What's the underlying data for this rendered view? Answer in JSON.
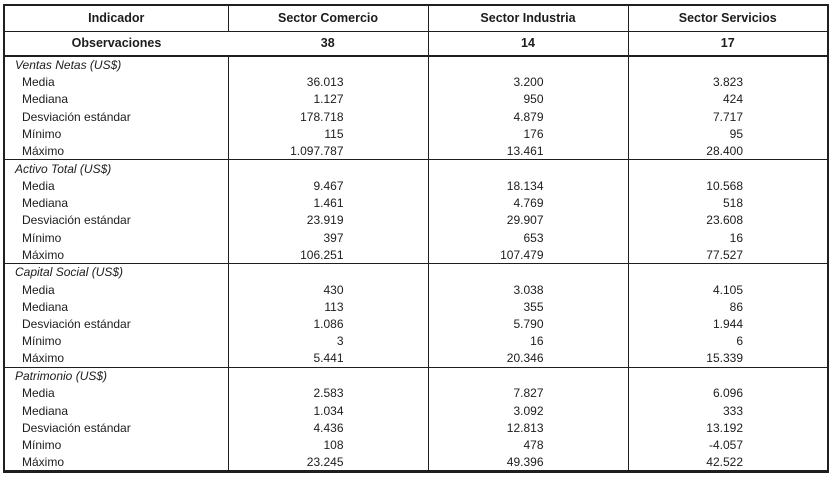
{
  "table": {
    "columns": [
      "Indicador",
      "Sector Comercio",
      "Sector Industria",
      "Sector Servicios"
    ],
    "observations": {
      "label": "Observaciones",
      "values": [
        "38",
        "14",
        "17"
      ]
    },
    "stat_labels": [
      "Media",
      "Mediana",
      "Desviación estándar",
      "Mínimo",
      "Máximo"
    ],
    "sections": [
      {
        "title": "Ventas Netas (US$)",
        "rows": [
          {
            "label": "Media",
            "values": [
              "36.013",
              "3.200",
              "3.823"
            ]
          },
          {
            "label": "Mediana",
            "values": [
              "1.127",
              "950",
              "424"
            ]
          },
          {
            "label": "Desviación estándar",
            "values": [
              "178.718",
              "4.879",
              "7.717"
            ]
          },
          {
            "label": "Mínimo",
            "values": [
              "115",
              "176",
              "95"
            ]
          },
          {
            "label": "Máximo",
            "values": [
              "1.097.787",
              "13.461",
              "28.400"
            ]
          }
        ]
      },
      {
        "title": "Activo Total (US$)",
        "rows": [
          {
            "label": "Media",
            "values": [
              "9.467",
              "18.134",
              "10.568"
            ]
          },
          {
            "label": "Mediana",
            "values": [
              "1.461",
              "4.769",
              "518"
            ]
          },
          {
            "label": "Desviación estándar",
            "values": [
              "23.919",
              "29.907",
              "23.608"
            ]
          },
          {
            "label": "Mínimo",
            "values": [
              "397",
              "653",
              "16"
            ]
          },
          {
            "label": "Máximo",
            "values": [
              "106.251",
              "107.479",
              "77.527"
            ]
          }
        ]
      },
      {
        "title": "Capital Social (US$)",
        "rows": [
          {
            "label": "Media",
            "values": [
              "430",
              "3.038",
              "4.105"
            ]
          },
          {
            "label": "Mediana",
            "values": [
              "113",
              "355",
              "86"
            ]
          },
          {
            "label": "Desviación estándar",
            "values": [
              "1.086",
              "5.790",
              "1.944"
            ]
          },
          {
            "label": "Mínimo",
            "values": [
              "3",
              "16",
              "6"
            ]
          },
          {
            "label": "Máximo",
            "values": [
              "5.441",
              "20.346",
              "15.339"
            ]
          }
        ]
      },
      {
        "title": "Patrimonio (US$)",
        "rows": [
          {
            "label": "Media",
            "values": [
              "2.583",
              "7.827",
              "6.096"
            ]
          },
          {
            "label": "Mediana",
            "values": [
              "1.034",
              "3.092",
              "333"
            ]
          },
          {
            "label": "Desviación estándar",
            "values": [
              "4.436",
              "12.813",
              "13.192"
            ]
          },
          {
            "label": "Mínimo",
            "values": [
              "108",
              "478",
              "-4.057"
            ]
          },
          {
            "label": "Máximo",
            "values": [
              "23.245",
              "49.396",
              "42.522"
            ]
          }
        ]
      }
    ]
  }
}
